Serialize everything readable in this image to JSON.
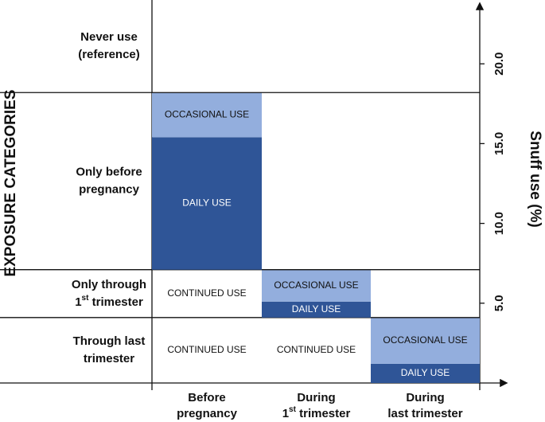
{
  "chart_data": {
    "type": "exposure-matrix",
    "ylabel": "EXPOSURE CATEGORIES",
    "y2label": "Snuff use (%)",
    "ylim": [
      0,
      23.8
    ],
    "yticks": [
      {
        "value": 5,
        "label": "5.0"
      },
      {
        "value": 10,
        "label": "10.0"
      },
      {
        "value": 15,
        "label": "15.0"
      },
      {
        "value": 20,
        "label": "20.0"
      }
    ],
    "columns": [
      {
        "lines": [
          [
            "Before"
          ],
          [
            "pregnancy"
          ]
        ]
      },
      {
        "lines": [
          [
            "During"
          ],
          [
            "1",
            "st",
            " trimester"
          ]
        ]
      },
      {
        "lines": [
          [
            "During"
          ],
          [
            "last trimester"
          ]
        ]
      }
    ],
    "rows": [
      {
        "lines": [
          [
            "Never use"
          ],
          [
            "(reference)"
          ]
        ],
        "cells": []
      },
      {
        "lines": [
          [
            "Only before"
          ],
          [
            "pregnancy"
          ]
        ],
        "cells": [
          {
            "bars": [
              {
                "label": "DAILY USE",
                "value": 8.3,
                "color": "#2f5597"
              },
              {
                "label": "OCCASIONAL USE",
                "value": 2.8,
                "color": "#93aedd"
              }
            ]
          }
        ]
      },
      {
        "lines": [
          [
            "Only through"
          ],
          [
            "1",
            "st",
            " trimester"
          ]
        ],
        "cells": [
          {
            "text": "CONTINUED USE"
          },
          {
            "bars": [
              {
                "label": "DAILY USE",
                "value": 1.0,
                "color": "#2f5597"
              },
              {
                "label": "OCCASIONAL USE",
                "value": 2.0,
                "color": "#93aedd"
              }
            ]
          }
        ]
      },
      {
        "lines": [
          [
            "Through last"
          ],
          [
            "trimester"
          ]
        ],
        "cells": [
          {
            "text": "CONTINUED USE"
          },
          {
            "text": "CONTINUED USE"
          },
          {
            "bars": [
              {
                "label": "DAILY USE",
                "value": 1.2,
                "color": "#2f5597"
              },
              {
                "label": "OCCASIONAL USE",
                "value": 2.9,
                "color": "#93aedd"
              }
            ]
          }
        ]
      }
    ]
  }
}
